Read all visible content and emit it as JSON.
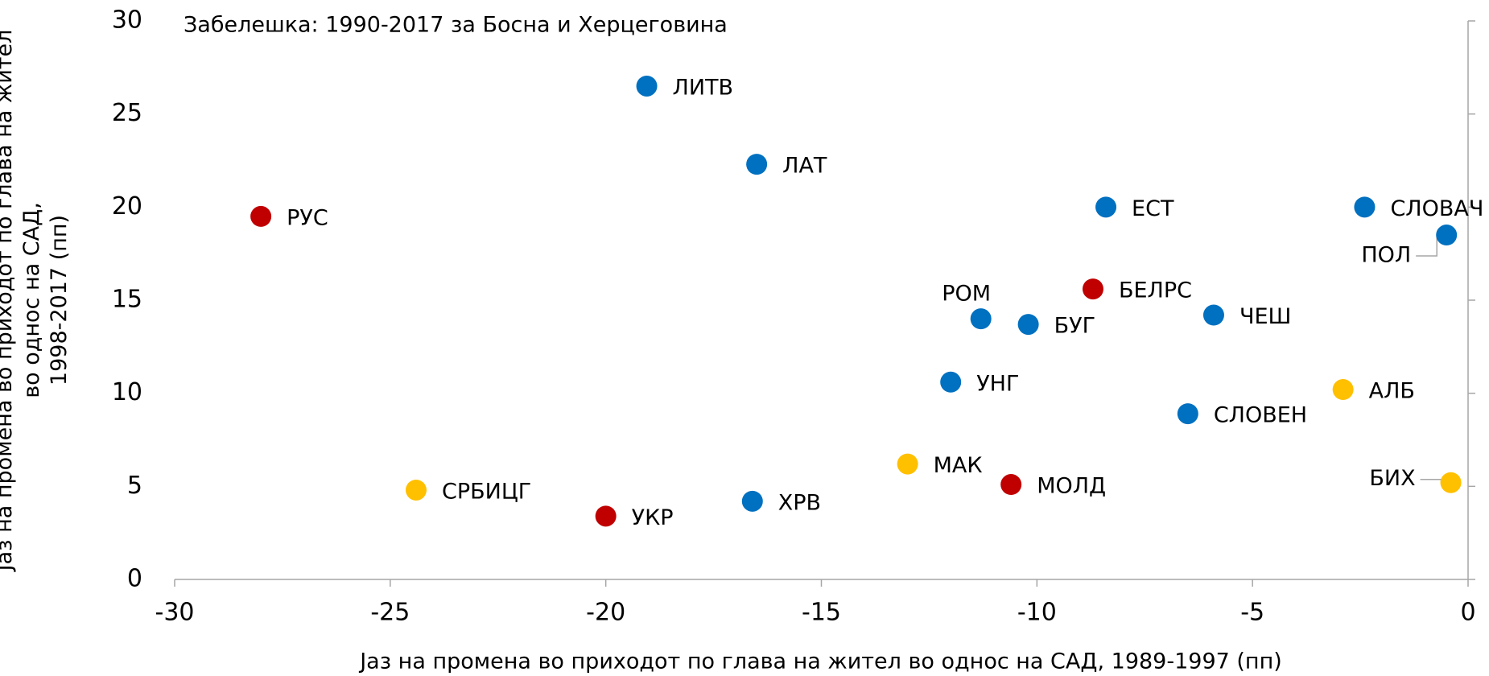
{
  "chart_data": {
    "type": "scatter",
    "annotation": "Забелешка: 1990-2017 за Босна и Херцеговина",
    "x_label": "Јаз на промена во приходот по глава на жител во однос на САД, 1989-1997 (пп)",
    "y_label": [
      "Јаз на промена во приходот по глава на жител",
      "во однос на САД,",
      "1998-2017 (пп)"
    ],
    "labels": [
      "ЛИТВ",
      "ЛАТ",
      "РУС",
      "ЕСТ",
      "СЛОВАЧ",
      "ПОЛ",
      "БЕЛРС",
      "РОМ",
      "БУГ",
      "ЧЕШ",
      "УНГ",
      "АЛБ",
      "СЛОВЕН",
      "МАК",
      "МОЛД",
      "СРБИЦГ",
      "ХРВ",
      "УКР",
      "БИХ"
    ],
    "x": [
      -19.05,
      -16.5,
      -28,
      -8.4,
      -2.4,
      -0.5,
      -8.7,
      -11.3,
      -10.2,
      -5.9,
      -12.0,
      -2.9,
      -6.5,
      -13.0,
      -10.6,
      -24.4,
      -16.6,
      -20.0,
      -0.4
    ],
    "values": [
      26.5,
      22.3,
      19.5,
      20.0,
      20.0,
      18.5,
      15.6,
      14.0,
      13.7,
      14.2,
      10.6,
      10.2,
      8.9,
      6.2,
      5.1,
      4.8,
      4.2,
      3.4,
      5.2
    ],
    "colors": [
      "#0070c0",
      "#0070c0",
      "#c00000",
      "#0070c0",
      "#0070c0",
      "#0070c0",
      "#c00000",
      "#0070c0",
      "#0070c0",
      "#0070c0",
      "#0070c0",
      "#ffc000",
      "#0070c0",
      "#ffc000",
      "#c00000",
      "#ffc000",
      "#0070c0",
      "#c00000",
      "#ffc000"
    ],
    "xlim": [
      -30,
      0
    ],
    "xticks": [
      -30,
      -25,
      -20,
      -15,
      -10,
      -5,
      0
    ],
    "ylim": [
      0,
      30
    ],
    "yticks": [
      0,
      5,
      10,
      15,
      20,
      25,
      30
    ]
  }
}
